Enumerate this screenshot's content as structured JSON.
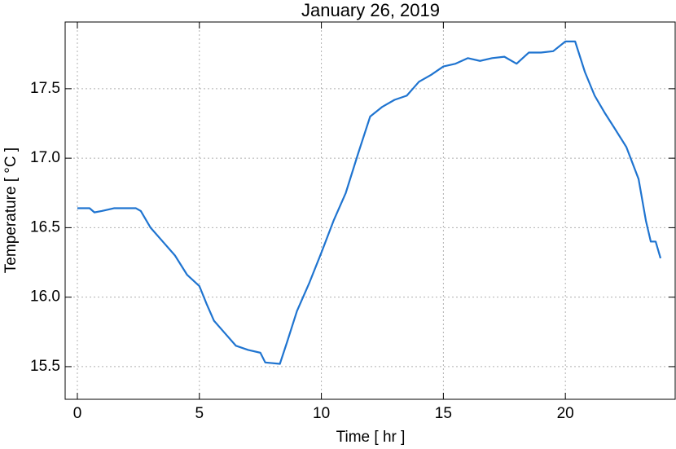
{
  "chart_data": {
    "type": "line",
    "title": "January 26, 2019",
    "x_label": "Time [ hr ]",
    "y_label": "Temperature [ °C ]",
    "x": [
      0,
      0.5,
      0.7,
      1,
      1.5,
      2,
      2.4,
      2.6,
      3,
      3.5,
      4,
      4.5,
      5,
      5.3,
      5.6,
      6,
      6.5,
      7,
      7.5,
      7.7,
      8.3,
      8.6,
      9,
      9.5,
      10,
      10.5,
      11,
      11.5,
      12,
      12.5,
      13,
      13.5,
      14,
      14.5,
      15,
      15.5,
      16,
      16.5,
      17,
      17.5,
      18,
      18.5,
      19,
      19.5,
      20,
      20.4,
      20.8,
      21.2,
      21.6,
      22,
      22.5,
      23,
      23.3,
      23.5,
      23.7,
      23.9
    ],
    "values": [
      16.64,
      16.64,
      16.61,
      16.62,
      16.64,
      16.64,
      16.64,
      16.62,
      16.5,
      16.4,
      16.3,
      16.16,
      16.08,
      15.95,
      15.83,
      15.75,
      15.65,
      15.62,
      15.6,
      15.53,
      15.52,
      15.68,
      15.9,
      16.1,
      16.32,
      16.55,
      16.75,
      17.03,
      17.3,
      17.37,
      17.42,
      17.45,
      17.55,
      17.6,
      17.66,
      17.68,
      17.72,
      17.7,
      17.72,
      17.73,
      17.68,
      17.76,
      17.76,
      17.77,
      17.84,
      17.84,
      17.62,
      17.45,
      17.33,
      17.22,
      17.08,
      16.85,
      16.55,
      16.4,
      16.4,
      16.28
    ],
    "color": "#1f74d0",
    "xlim": [
      -0.5,
      24.5
    ],
    "ylim": [
      15.265,
      17.98
    ],
    "xticks": [
      0,
      5,
      10,
      15,
      20
    ],
    "yticks": [
      15.5,
      {
        "value": 16,
        "label": "16.0"
      },
      16.5,
      {
        "value": 17,
        "label": "17.0"
      },
      17.5
    ],
    "grid": true
  }
}
